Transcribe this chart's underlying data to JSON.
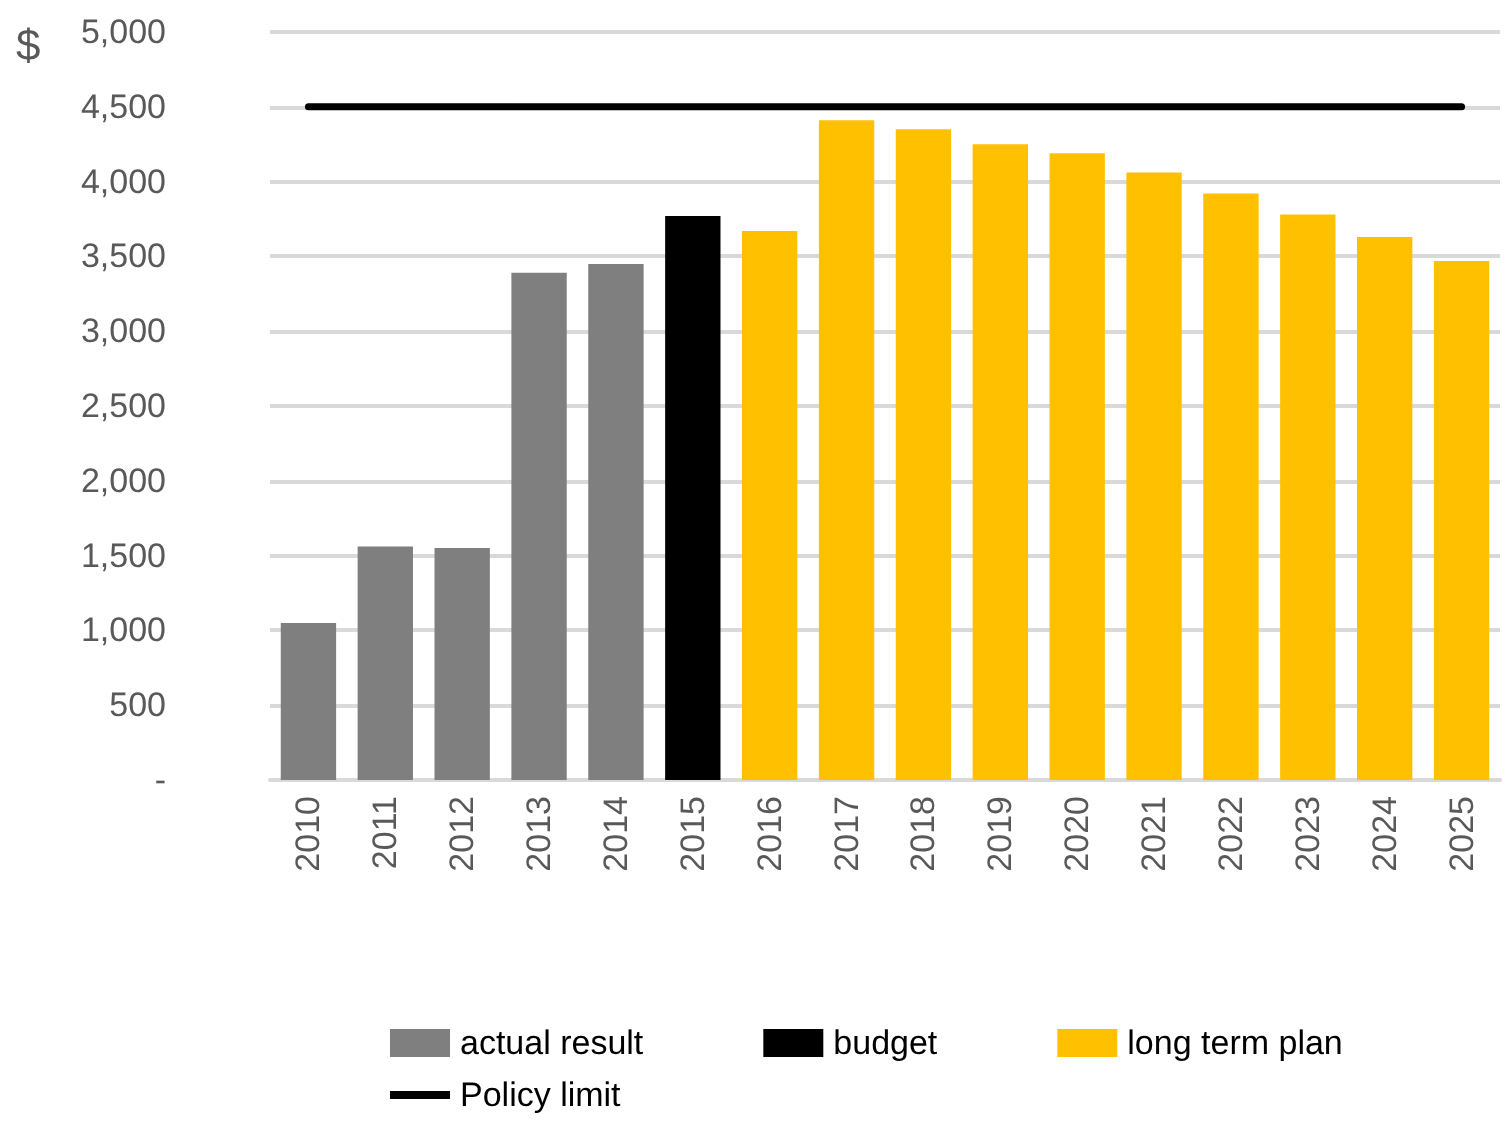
{
  "chart_data": {
    "type": "bar",
    "ylabel": "$",
    "categories": [
      "2010",
      "2011",
      "2012",
      "2013",
      "2014",
      "2015",
      "2016",
      "2017",
      "2018",
      "2019",
      "2020",
      "2021",
      "2022",
      "2023",
      "2024",
      "2025"
    ],
    "series": [
      {
        "name": "actual result",
        "color": "#7f7f7f",
        "values": [
          1050,
          1560,
          1550,
          3390,
          3450,
          null,
          null,
          null,
          null,
          null,
          null,
          null,
          null,
          null,
          null,
          null
        ]
      },
      {
        "name": "budget",
        "color": "#000000",
        "values": [
          null,
          null,
          null,
          null,
          null,
          3770,
          null,
          null,
          null,
          null,
          null,
          null,
          null,
          null,
          null,
          null
        ]
      },
      {
        "name": "long term plan",
        "color": "#ffc000",
        "values": [
          null,
          null,
          null,
          null,
          null,
          null,
          3670,
          4410,
          4350,
          4250,
          4190,
          4060,
          3920,
          3780,
          3630,
          3470
        ]
      },
      {
        "name": "Policy limit",
        "type": "line",
        "color": "#000000",
        "marker": "none",
        "values": [
          4500,
          4500,
          4500,
          4500,
          4500,
          4500,
          4500,
          4500,
          4500,
          4500,
          4500,
          4500,
          4500,
          4500,
          4500,
          4500
        ]
      }
    ],
    "ylim": [
      0,
      5000
    ],
    "yticks": [
      {
        "value": 0,
        "label": "-"
      },
      500,
      {
        "value": 1000,
        "label": "1,000"
      },
      {
        "value": 1500,
        "label": "1,500"
      },
      {
        "value": 2000,
        "label": "2,000"
      },
      {
        "value": 2500,
        "label": "2,500"
      },
      {
        "value": 3000,
        "label": "3,000"
      },
      {
        "value": 3500,
        "label": "3,500"
      },
      {
        "value": 4000,
        "label": "4,000"
      },
      {
        "value": 4500,
        "label": "4,500"
      },
      {
        "value": 5000,
        "label": "5,000"
      }
    ],
    "grid": "y",
    "legend": "bottom"
  }
}
